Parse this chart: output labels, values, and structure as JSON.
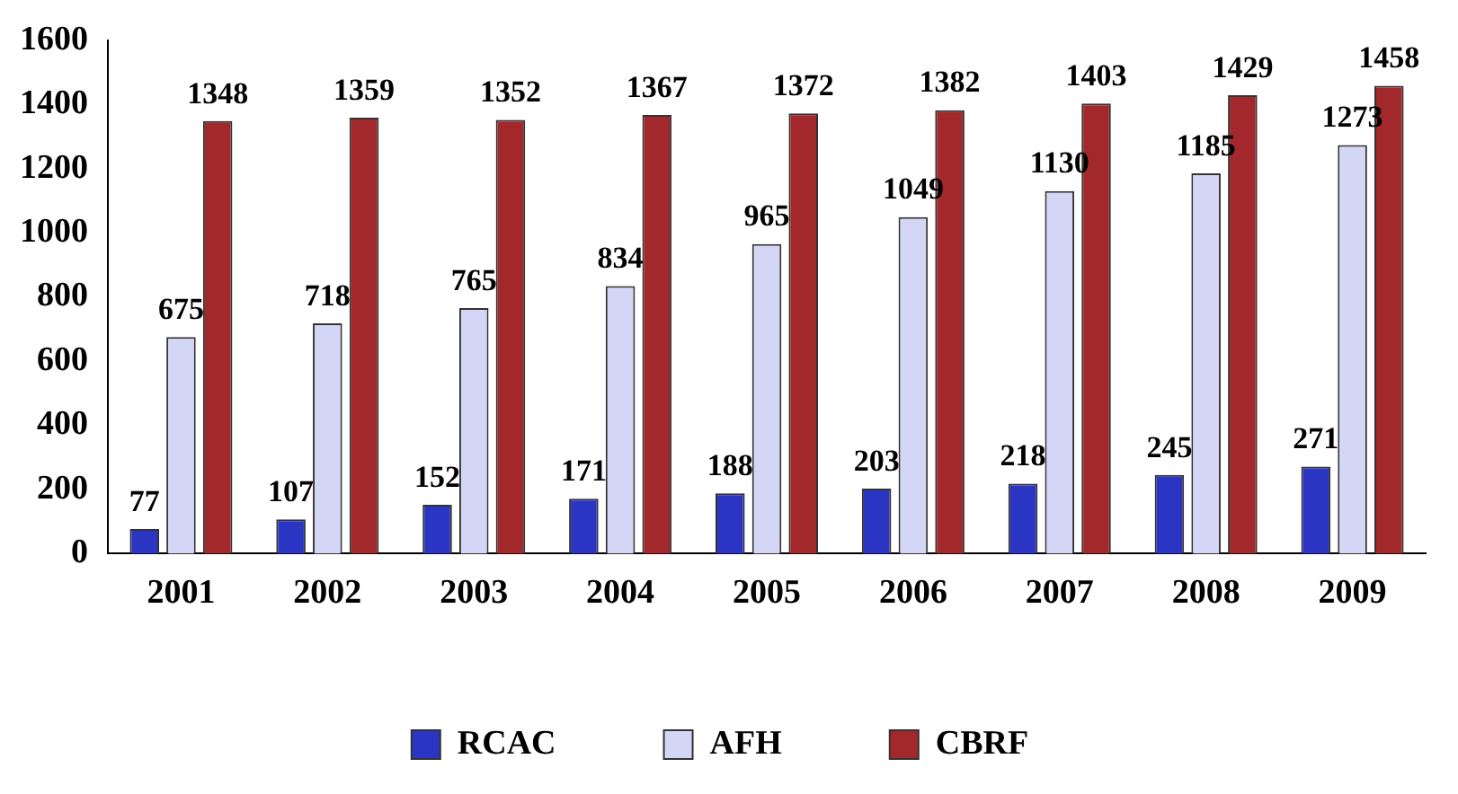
{
  "chart_data": {
    "type": "bar",
    "categories": [
      "2001",
      "2002",
      "2003",
      "2004",
      "2005",
      "2006",
      "2007",
      "2008",
      "2009"
    ],
    "series": [
      {
        "name": "RCAC",
        "color": "#2b35c4",
        "values": [
          77,
          107,
          152,
          171,
          188,
          203,
          218,
          245,
          271
        ]
      },
      {
        "name": "AFH",
        "color": "#d4d6f6",
        "values": [
          675,
          718,
          765,
          834,
          965,
          1049,
          1130,
          1185,
          1273
        ]
      },
      {
        "name": "CBRF",
        "color": "#a3282b",
        "values": [
          1348,
          1359,
          1352,
          1367,
          1372,
          1382,
          1403,
          1429,
          1458
        ]
      }
    ],
    "ylim": [
      0,
      1600
    ],
    "yticks": [
      0,
      200,
      400,
      600,
      800,
      1000,
      1200,
      1400,
      1600
    ],
    "grid": false,
    "legend": "bottom",
    "data_labels": true
  }
}
